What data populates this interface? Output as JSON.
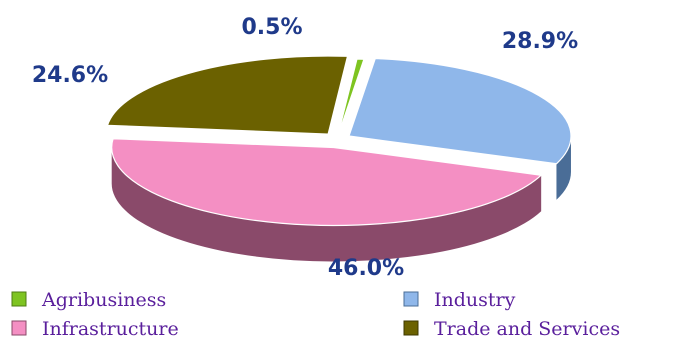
{
  "chart_data": {
    "type": "pie",
    "title": "",
    "slices": [
      {
        "label": "Agribusiness",
        "value": 0.5,
        "display": "0.5%",
        "color": "#7ec421",
        "side": "#4f7d13"
      },
      {
        "label": "Industry",
        "value": 28.9,
        "display": "28.9%",
        "color": "#8fb7ea",
        "side": "#4a6d97"
      },
      {
        "label": "Infrastructure",
        "value": 46.0,
        "display": "46.0%",
        "color": "#f48fc3",
        "side": "#8a4a6a"
      },
      {
        "label": "Trade and Services",
        "value": 24.6,
        "display": "24.6%",
        "color": "#6b6100",
        "side": "#3e3800"
      }
    ],
    "legend": {
      "position": "bottom",
      "entries": [
        "Agribusiness",
        "Industry",
        "Infrastructure",
        "Trade and Services"
      ]
    },
    "style": "3d-exploded"
  }
}
